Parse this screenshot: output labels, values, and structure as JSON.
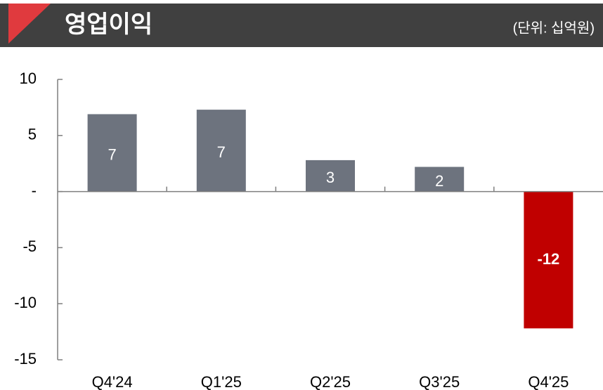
{
  "chart_data": {
    "type": "bar",
    "title": "영업이익",
    "subtitle": "(단위: 십억원)",
    "categories": [
      "Q4'24",
      "Q1'25",
      "Q2'25",
      "Q3'25",
      "Q4'25"
    ],
    "values": [
      6.9,
      7.3,
      2.8,
      2.2,
      -12.2
    ],
    "value_labels": [
      "7",
      "7",
      "3",
      "2",
      "-12"
    ],
    "colors": [
      "#6d737e",
      "#6d737e",
      "#6d737e",
      "#6d737e",
      "#c00000"
    ],
    "ylim": [
      -15,
      10
    ],
    "yticks": [
      10,
      5,
      {
        "value": 0,
        "label": "-"
      },
      -5,
      -10,
      -15
    ]
  }
}
